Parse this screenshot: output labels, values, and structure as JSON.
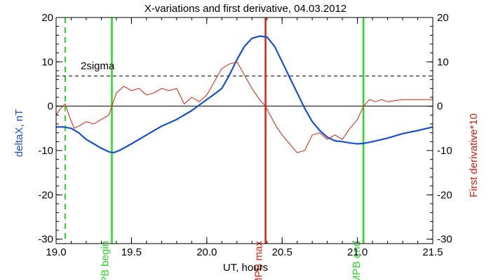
{
  "chart_data": {
    "type": "line",
    "title": "X-variations and first derivative, 04.03.2012",
    "xlabel": "UT, hours",
    "ylabel_left": "deltaX, nT",
    "ylabel_right": "First derivative*10",
    "xlim": [
      19.0,
      21.5
    ],
    "ylim": [
      -31,
      20
    ],
    "x_ticks": [
      "19.0",
      "19.5",
      "20.0",
      "20.5",
      "21.0",
      "21.5"
    ],
    "x_tick_values": [
      19.0,
      19.5,
      20.0,
      20.5,
      21.0,
      21.5
    ],
    "y_ticks": [
      "20",
      "10",
      "0",
      "-10",
      "-20",
      "-30"
    ],
    "y_tick_values": [
      20,
      10,
      0,
      -10,
      -20,
      -30
    ],
    "grid": false,
    "threshold": {
      "label": "2sigma",
      "value": 6.8
    },
    "zero_line": 0,
    "markers": [
      {
        "label": "MPB begin",
        "x": 19.37,
        "color": "#22dd22"
      },
      {
        "label": "MPB max",
        "x": 20.39,
        "color": "#e81f0d"
      },
      {
        "label": "MPB end",
        "x": 21.04,
        "color": "#22dd22"
      }
    ],
    "dashed_marker_x": 19.06,
    "series": [
      {
        "name": "deltaX",
        "color": "#1650d8",
        "x": [
          19.0,
          19.05,
          19.1,
          19.15,
          19.2,
          19.25,
          19.3,
          19.35,
          19.38,
          19.42,
          19.5,
          19.6,
          19.7,
          19.8,
          19.9,
          20.0,
          20.05,
          20.1,
          20.15,
          20.2,
          20.25,
          20.3,
          20.35,
          20.4,
          20.45,
          20.5,
          20.55,
          20.6,
          20.65,
          20.7,
          20.75,
          20.8,
          20.85,
          20.9,
          20.95,
          21.0,
          21.04,
          21.1,
          21.2,
          21.3,
          21.4,
          21.5
        ],
        "values": [
          -4.7,
          -4.7,
          -5.0,
          -6.0,
          -7.5,
          -8.5,
          -9.5,
          -10.3,
          -10.5,
          -10.0,
          -8.5,
          -6.5,
          -4.5,
          -3.0,
          -1.0,
          1.5,
          2.7,
          4.0,
          7.0,
          10.5,
          13.5,
          15.3,
          15.8,
          15.6,
          13.5,
          10.0,
          6.5,
          3.0,
          -0.5,
          -3.5,
          -5.5,
          -7.0,
          -7.8,
          -8.0,
          -8.3,
          -8.5,
          -8.4,
          -8.0,
          -7.2,
          -6.2,
          -5.5,
          -4.7
        ]
      },
      {
        "name": "First derivative*10",
        "color": "#e01c0a",
        "x": [
          19.0,
          19.03,
          19.06,
          19.09,
          19.12,
          19.15,
          19.2,
          19.25,
          19.3,
          19.35,
          19.37,
          19.4,
          19.45,
          19.5,
          19.55,
          19.6,
          19.65,
          19.7,
          19.75,
          19.8,
          19.85,
          19.9,
          19.95,
          20.0,
          20.05,
          20.1,
          20.15,
          20.2,
          20.25,
          20.3,
          20.35,
          20.39,
          20.42,
          20.46,
          20.5,
          20.55,
          20.6,
          20.65,
          20.7,
          20.75,
          20.8,
          20.85,
          20.9,
          20.95,
          21.0,
          21.04,
          21.08,
          21.12,
          21.16,
          21.2,
          21.3,
          21.4,
          21.5
        ],
        "values": [
          -2.0,
          -0.5,
          0.5,
          -2.5,
          -5.0,
          -4.5,
          -3.5,
          -4.0,
          -3.0,
          -2.0,
          0.0,
          3.0,
          4.5,
          3.5,
          4.0,
          2.5,
          3.0,
          4.0,
          3.5,
          4.0,
          0.5,
          2.0,
          1.0,
          2.5,
          5.5,
          8.5,
          9.5,
          10.0,
          7.0,
          4.0,
          1.5,
          0.0,
          -2.0,
          -4.5,
          -6.5,
          -8.5,
          -10.5,
          -10.0,
          -6.5,
          -6.0,
          -7.5,
          -6.5,
          -7.5,
          -5.0,
          -3.0,
          0.0,
          1.5,
          1.0,
          1.5,
          1.0,
          1.5,
          1.5,
          1.5
        ]
      }
    ]
  }
}
